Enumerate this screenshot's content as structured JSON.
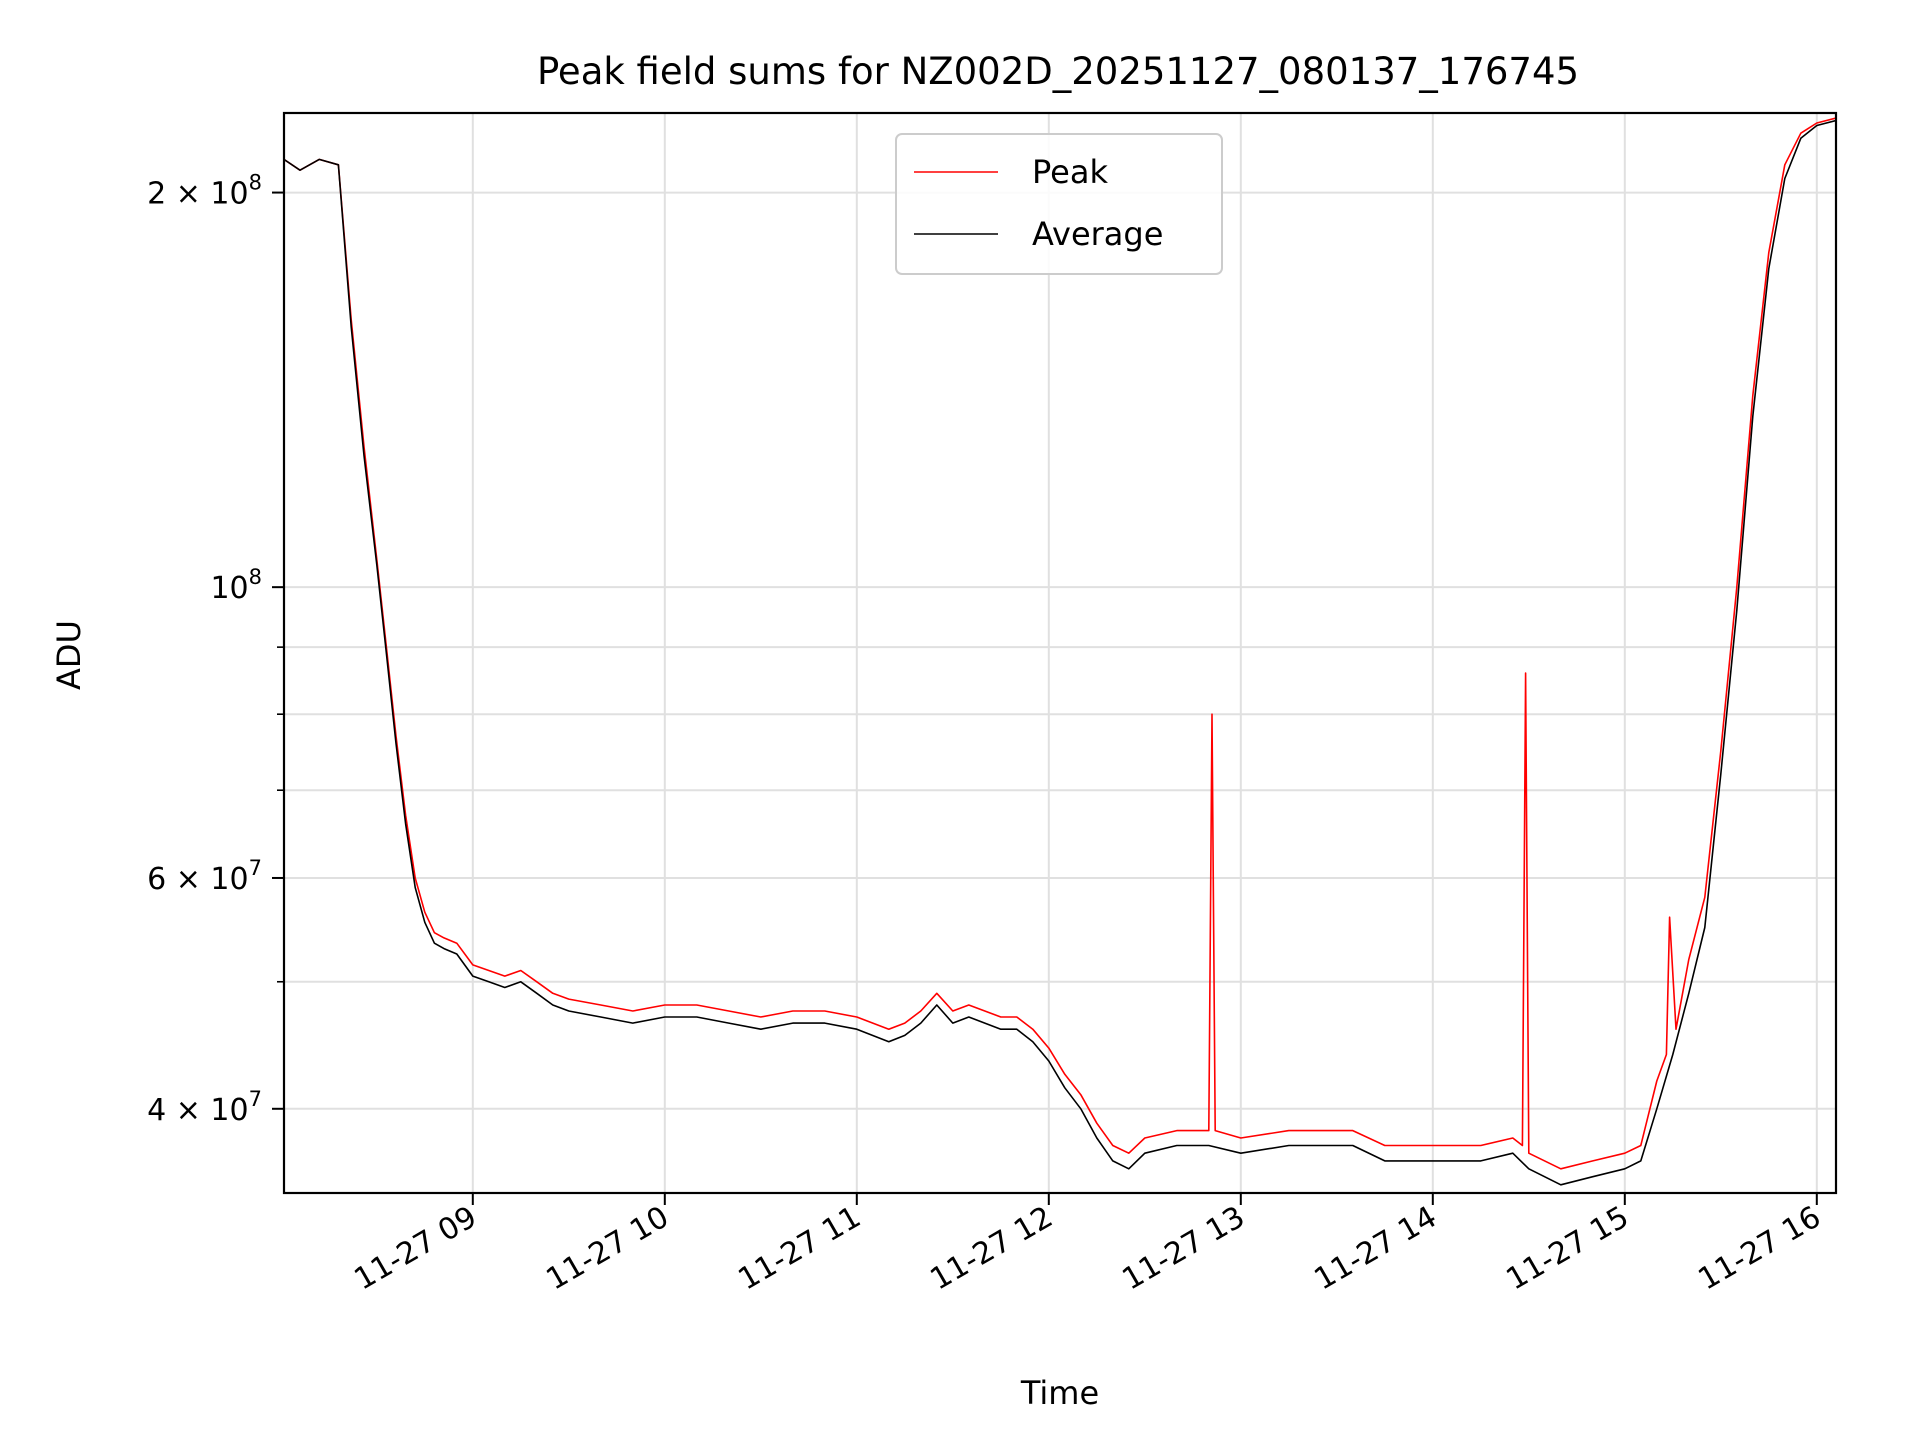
{
  "chart_data": {
    "type": "line",
    "title": "Peak field sums for NZ002D_20251127_080137_176745",
    "xlabel": "Time",
    "ylabel": "ADU",
    "y_scale": "log",
    "xlim": [
      "2025-11-27 08:01",
      "2025-11-27 16:06"
    ],
    "ylim": [
      34500000,
      230000000
    ],
    "grid": true,
    "legend": {
      "placement": "top-center"
    },
    "x_ticks": [
      {
        "value": "2025-11-27 09:00",
        "label": "11-27 09"
      },
      {
        "value": "2025-11-27 10:00",
        "label": "11-27 10"
      },
      {
        "value": "2025-11-27 11:00",
        "label": "11-27 11"
      },
      {
        "value": "2025-11-27 12:00",
        "label": "11-27 12"
      },
      {
        "value": "2025-11-27 13:00",
        "label": "11-27 13"
      },
      {
        "value": "2025-11-27 14:00",
        "label": "11-27 14"
      },
      {
        "value": "2025-11-27 15:00",
        "label": "11-27 15"
      },
      {
        "value": "2025-11-27 16:00",
        "label": "11-27 16"
      }
    ],
    "y_ticks": [
      {
        "value": 40000000,
        "base": "4 × 10",
        "exp": "7"
      },
      {
        "value": 60000000,
        "base": "6 × 10",
        "exp": "7"
      },
      {
        "value": 100000000,
        "base": "10",
        "exp": "8"
      },
      {
        "value": 200000000,
        "base": "2 × 10",
        "exp": "8"
      }
    ],
    "y_minor_ticks": [
      50000000,
      70000000,
      80000000,
      90000000
    ],
    "series": [
      {
        "name": "Peak",
        "color": "#ff0000",
        "x": [
          "2025-11-27 08:01",
          "2025-11-27 08:06",
          "2025-11-27 08:12",
          "2025-11-27 08:18",
          "2025-11-27 08:22",
          "2025-11-27 08:26",
          "2025-11-27 08:30",
          "2025-11-27 08:33",
          "2025-11-27 08:36",
          "2025-11-27 08:39",
          "2025-11-27 08:42",
          "2025-11-27 08:45",
          "2025-11-27 08:48",
          "2025-11-27 08:51",
          "2025-11-27 08:55",
          "2025-11-27 09:00",
          "2025-11-27 09:05",
          "2025-11-27 09:10",
          "2025-11-27 09:15",
          "2025-11-27 09:20",
          "2025-11-27 09:25",
          "2025-11-27 09:30",
          "2025-11-27 09:40",
          "2025-11-27 09:50",
          "2025-11-27 10:00",
          "2025-11-27 10:10",
          "2025-11-27 10:20",
          "2025-11-27 10:30",
          "2025-11-27 10:40",
          "2025-11-27 10:50",
          "2025-11-27 11:00",
          "2025-11-27 11:10",
          "2025-11-27 11:15",
          "2025-11-27 11:20",
          "2025-11-27 11:25",
          "2025-11-27 11:30",
          "2025-11-27 11:35",
          "2025-11-27 11:40",
          "2025-11-27 11:45",
          "2025-11-27 11:50",
          "2025-11-27 11:55",
          "2025-11-27 12:00",
          "2025-11-27 12:05",
          "2025-11-27 12:10",
          "2025-11-27 12:15",
          "2025-11-27 12:20",
          "2025-11-27 12:25",
          "2025-11-27 12:30",
          "2025-11-27 12:40",
          "2025-11-27 12:50",
          "2025-11-27 12:51",
          "2025-11-27 12:52",
          "2025-11-27 13:00",
          "2025-11-27 13:15",
          "2025-11-27 13:30",
          "2025-11-27 13:35",
          "2025-11-27 13:45",
          "2025-11-27 14:00",
          "2025-11-27 14:15",
          "2025-11-27 14:25",
          "2025-11-27 14:28",
          "2025-11-27 14:29",
          "2025-11-27 14:30",
          "2025-11-27 14:40",
          "2025-11-27 14:50",
          "2025-11-27 15:00",
          "2025-11-27 15:05",
          "2025-11-27 15:10",
          "2025-11-27 15:13",
          "2025-11-27 15:14",
          "2025-11-27 15:16",
          "2025-11-27 15:20",
          "2025-11-27 15:25",
          "2025-11-27 15:30",
          "2025-11-27 15:35",
          "2025-11-27 15:40",
          "2025-11-27 15:45",
          "2025-11-27 15:50",
          "2025-11-27 15:55",
          "2025-11-27 16:00",
          "2025-11-27 16:06"
        ],
        "y": [
          212000000,
          208000000,
          212000000,
          210000000,
          160000000,
          128000000,
          105000000,
          90000000,
          77000000,
          67000000,
          60000000,
          56500000,
          54500000,
          54000000,
          53500000,
          51500000,
          51000000,
          50500000,
          51000000,
          50000000,
          49000000,
          48500000,
          48000000,
          47500000,
          48000000,
          48000000,
          47500000,
          47000000,
          47500000,
          47500000,
          47000000,
          46000000,
          46500000,
          47500000,
          49000000,
          47500000,
          48000000,
          47500000,
          47000000,
          47000000,
          46000000,
          44500000,
          42500000,
          41000000,
          39000000,
          37500000,
          37000000,
          38000000,
          38500000,
          38500000,
          80000000,
          38500000,
          38000000,
          38500000,
          38500000,
          38500000,
          37500000,
          37500000,
          37500000,
          38000000,
          37500000,
          86000000,
          37000000,
          36000000,
          36500000,
          37000000,
          37500000,
          42000000,
          44000000,
          56000000,
          46000000,
          52000000,
          58000000,
          75000000,
          100000000,
          140000000,
          180000000,
          210000000,
          222000000,
          226000000,
          228000000
        ]
      },
      {
        "name": "Average",
        "color": "#000000",
        "x": [
          "2025-11-27 08:01",
          "2025-11-27 08:06",
          "2025-11-27 08:12",
          "2025-11-27 08:18",
          "2025-11-27 08:22",
          "2025-11-27 08:26",
          "2025-11-27 08:30",
          "2025-11-27 08:33",
          "2025-11-27 08:36",
          "2025-11-27 08:39",
          "2025-11-27 08:42",
          "2025-11-27 08:45",
          "2025-11-27 08:48",
          "2025-11-27 08:51",
          "2025-11-27 08:55",
          "2025-11-27 09:00",
          "2025-11-27 09:05",
          "2025-11-27 09:10",
          "2025-11-27 09:15",
          "2025-11-27 09:20",
          "2025-11-27 09:25",
          "2025-11-27 09:30",
          "2025-11-27 09:40",
          "2025-11-27 09:50",
          "2025-11-27 10:00",
          "2025-11-27 10:10",
          "2025-11-27 10:20",
          "2025-11-27 10:30",
          "2025-11-27 10:40",
          "2025-11-27 10:50",
          "2025-11-27 11:00",
          "2025-11-27 11:10",
          "2025-11-27 11:15",
          "2025-11-27 11:20",
          "2025-11-27 11:25",
          "2025-11-27 11:30",
          "2025-11-27 11:35",
          "2025-11-27 11:40",
          "2025-11-27 11:45",
          "2025-11-27 11:50",
          "2025-11-27 11:55",
          "2025-11-27 12:00",
          "2025-11-27 12:05",
          "2025-11-27 12:10",
          "2025-11-27 12:15",
          "2025-11-27 12:20",
          "2025-11-27 12:25",
          "2025-11-27 12:30",
          "2025-11-27 12:40",
          "2025-11-27 12:50",
          "2025-11-27 13:00",
          "2025-11-27 13:15",
          "2025-11-27 13:30",
          "2025-11-27 13:35",
          "2025-11-27 13:45",
          "2025-11-27 14:00",
          "2025-11-27 14:15",
          "2025-11-27 14:25",
          "2025-11-27 14:30",
          "2025-11-27 14:40",
          "2025-11-27 14:50",
          "2025-11-27 15:00",
          "2025-11-27 15:05",
          "2025-11-27 15:10",
          "2025-11-27 15:15",
          "2025-11-27 15:20",
          "2025-11-27 15:25",
          "2025-11-27 15:30",
          "2025-11-27 15:35",
          "2025-11-27 15:40",
          "2025-11-27 15:45",
          "2025-11-27 15:50",
          "2025-11-27 15:55",
          "2025-11-27 16:00",
          "2025-11-27 16:06"
        ],
        "y": [
          212000000,
          208000000,
          212000000,
          210000000,
          158000000,
          126000000,
          104000000,
          89000000,
          76000000,
          66000000,
          59000000,
          55500000,
          53500000,
          53000000,
          52500000,
          50500000,
          50000000,
          49500000,
          50000000,
          49000000,
          48000000,
          47500000,
          47000000,
          46500000,
          47000000,
          47000000,
          46500000,
          46000000,
          46500000,
          46500000,
          46000000,
          45000000,
          45500000,
          46500000,
          48000000,
          46500000,
          47000000,
          46500000,
          46000000,
          46000000,
          45000000,
          43500000,
          41500000,
          40000000,
          38000000,
          36500000,
          36000000,
          37000000,
          37500000,
          37500000,
          37000000,
          37500000,
          37500000,
          37500000,
          36500000,
          36500000,
          36500000,
          37000000,
          36000000,
          35000000,
          35500000,
          36000000,
          36500000,
          40000000,
          44000000,
          49000000,
          55000000,
          72000000,
          96000000,
          135000000,
          175000000,
          205000000,
          220000000,
          225000000,
          227000000
        ]
      }
    ]
  }
}
